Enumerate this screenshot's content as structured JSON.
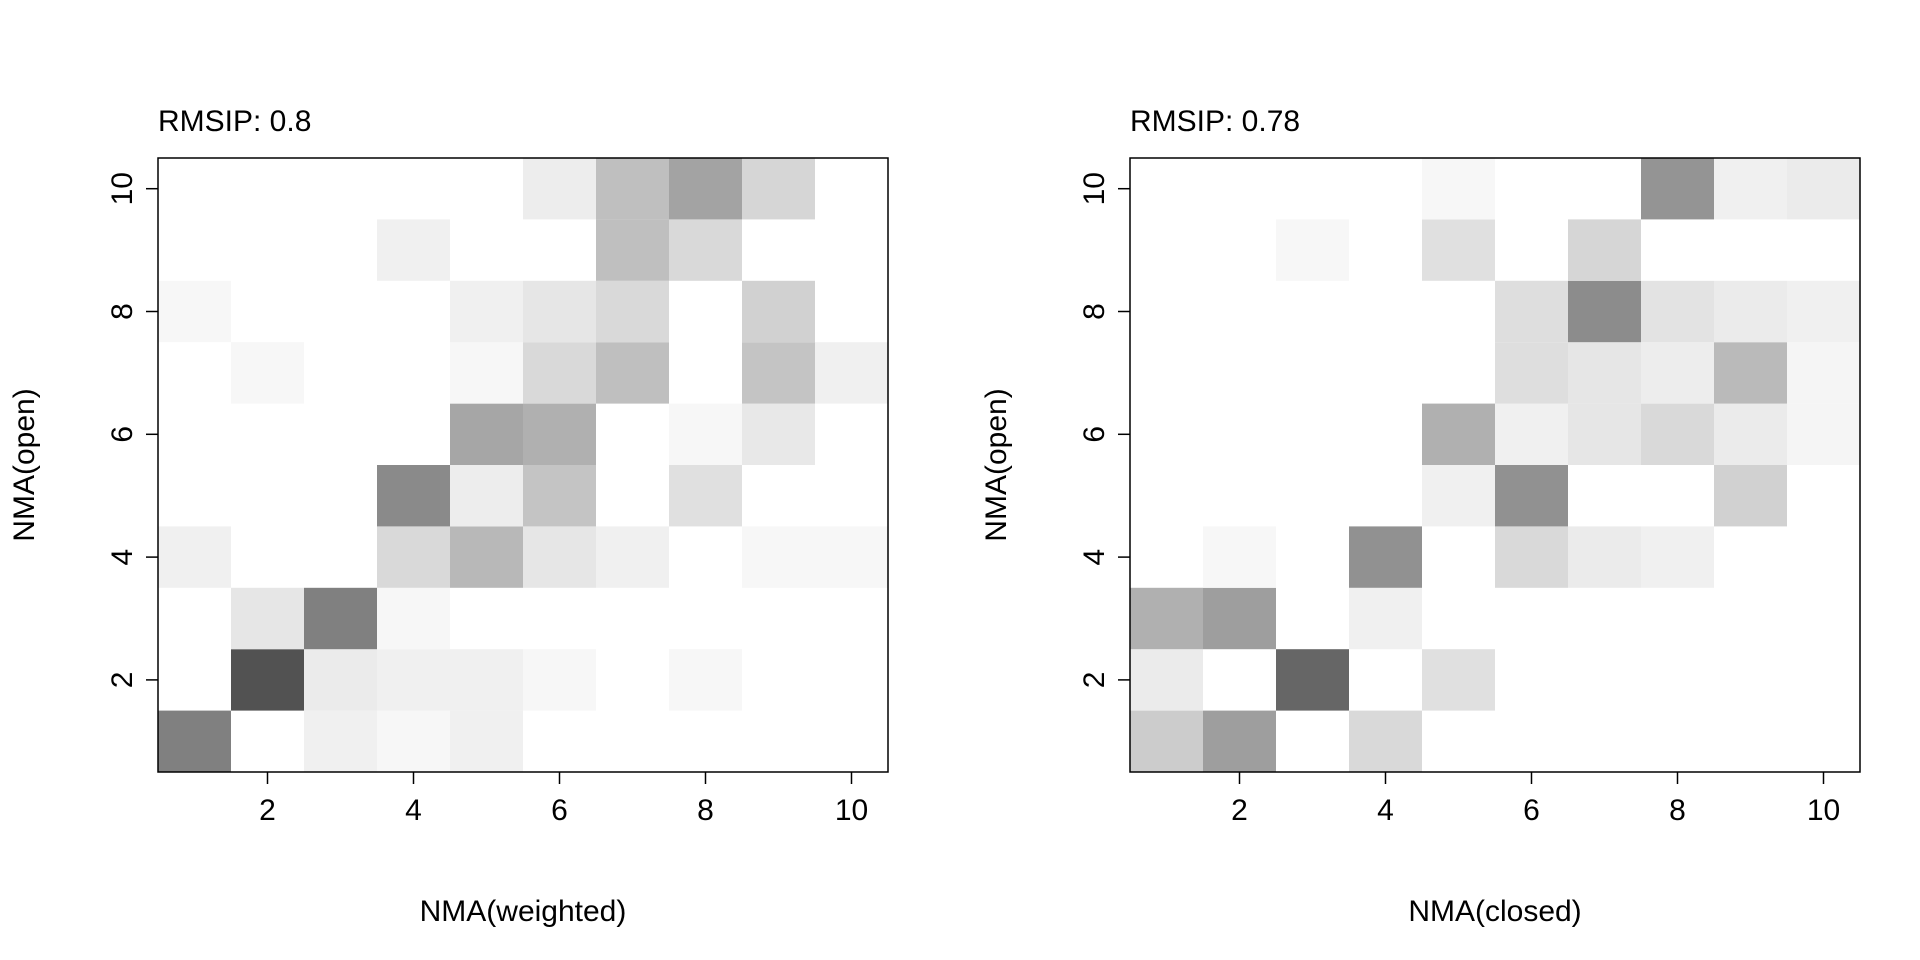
{
  "chart_data": [
    {
      "type": "heatmap",
      "title": "RMSIP: 0.8",
      "xlabel": "NMA(weighted)",
      "ylabel": "NMA(open)",
      "xlim": [
        0.5,
        10.5
      ],
      "ylim": [
        0.5,
        10.5
      ],
      "xticks": [
        2,
        4,
        6,
        8,
        10
      ],
      "yticks": [
        2,
        4,
        6,
        8,
        10
      ],
      "color_scale": "white-to-black (darker = higher overlap)",
      "grid": false,
      "rows": [
        "1",
        "2",
        "3",
        "4",
        "5",
        "6",
        "7",
        "8",
        "9",
        "10"
      ],
      "cols": [
        "1",
        "2",
        "3",
        "4",
        "5",
        "6",
        "7",
        "8",
        "9",
        "10"
      ],
      "values": [
        [
          0.5,
          0.0,
          0.06,
          0.03,
          0.06,
          0.0,
          0.0,
          0.0,
          0.0,
          0.0
        ],
        [
          0.0,
          0.68,
          0.08,
          0.06,
          0.06,
          0.03,
          0.0,
          0.03,
          0.0,
          0.0
        ],
        [
          0.0,
          0.1,
          0.5,
          0.03,
          0.0,
          0.0,
          0.0,
          0.0,
          0.0,
          0.0
        ],
        [
          0.06,
          0.0,
          0.0,
          0.15,
          0.28,
          0.1,
          0.06,
          0.0,
          0.03,
          0.03
        ],
        [
          0.0,
          0.0,
          0.0,
          0.46,
          0.07,
          0.23,
          0.0,
          0.12,
          0.0,
          0.0
        ],
        [
          0.0,
          0.0,
          0.0,
          0.0,
          0.35,
          0.31,
          0.0,
          0.03,
          0.09,
          0.0
        ],
        [
          0.0,
          0.03,
          0.0,
          0.0,
          0.03,
          0.15,
          0.25,
          0.0,
          0.23,
          0.06
        ],
        [
          0.03,
          0.0,
          0.0,
          0.0,
          0.06,
          0.1,
          0.15,
          0.0,
          0.18,
          0.0
        ],
        [
          0.0,
          0.0,
          0.0,
          0.06,
          0.0,
          0.0,
          0.25,
          0.15,
          0.0,
          0.0
        ],
        [
          0.0,
          0.0,
          0.0,
          0.0,
          0.0,
          0.07,
          0.25,
          0.36,
          0.16,
          0.0
        ]
      ]
    },
    {
      "type": "heatmap",
      "title": "RMSIP: 0.78",
      "xlabel": "NMA(closed)",
      "ylabel": "NMA(open)",
      "xlim": [
        0.5,
        10.5
      ],
      "ylim": [
        0.5,
        10.5
      ],
      "xticks": [
        2,
        4,
        6,
        8,
        10
      ],
      "yticks": [
        2,
        4,
        6,
        8,
        10
      ],
      "color_scale": "white-to-black (darker = higher overlap)",
      "grid": false,
      "rows": [
        "1",
        "2",
        "3",
        "4",
        "5",
        "6",
        "7",
        "8",
        "9",
        "10"
      ],
      "cols": [
        "1",
        "2",
        "3",
        "4",
        "5",
        "6",
        "7",
        "8",
        "9",
        "10"
      ],
      "values": [
        [
          0.2,
          0.38,
          0.0,
          0.15,
          0.0,
          0.0,
          0.0,
          0.0,
          0.0,
          0.0
        ],
        [
          0.08,
          0.0,
          0.6,
          0.0,
          0.12,
          0.0,
          0.0,
          0.0,
          0.0,
          0.0
        ],
        [
          0.31,
          0.38,
          0.0,
          0.06,
          0.0,
          0.0,
          0.0,
          0.0,
          0.0,
          0.0
        ],
        [
          0.0,
          0.03,
          0.0,
          0.43,
          0.0,
          0.15,
          0.08,
          0.06,
          0.0,
          0.0
        ],
        [
          0.0,
          0.0,
          0.0,
          0.0,
          0.06,
          0.43,
          0.0,
          0.0,
          0.18,
          0.0
        ],
        [
          0.0,
          0.0,
          0.0,
          0.0,
          0.31,
          0.06,
          0.1,
          0.15,
          0.08,
          0.04
        ],
        [
          0.0,
          0.0,
          0.0,
          0.0,
          0.0,
          0.13,
          0.1,
          0.07,
          0.27,
          0.04
        ],
        [
          0.0,
          0.0,
          0.0,
          0.0,
          0.0,
          0.13,
          0.45,
          0.11,
          0.08,
          0.06
        ],
        [
          0.0,
          0.0,
          0.03,
          0.0,
          0.12,
          0.0,
          0.16,
          0.0,
          0.0,
          0.0
        ],
        [
          0.0,
          0.0,
          0.0,
          0.0,
          0.03,
          0.0,
          0.0,
          0.42,
          0.06,
          0.08
        ]
      ]
    }
  ]
}
